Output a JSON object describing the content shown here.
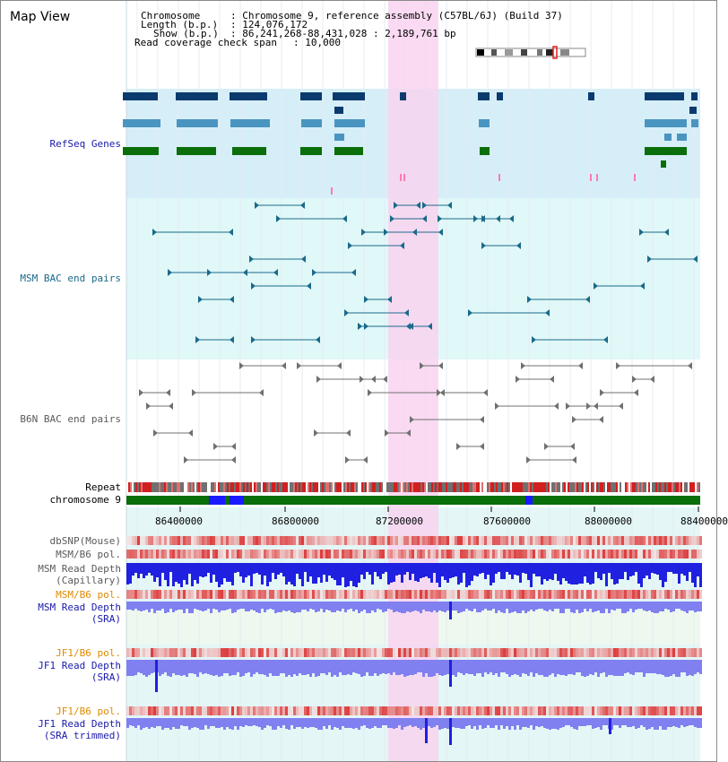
{
  "title": "Map View",
  "header": {
    "chromosome_label": "Chromosome",
    "chromosome_value": ": Chromosome 9, reference assembly (C57BL/6J) (Build 37)",
    "length_label": "Length (b.p.)",
    "length_value": ": 124,076,172",
    "show_label": "Show (b.p.)",
    "show_value": ": 86,241,268-88,431,028 : 2,189,761 bp",
    "span_label": "Read coverage check span",
    "span_value": ": 10,000"
  },
  "tracks": {
    "refseq": "RefSeq Genes",
    "msm_bac": "MSM BAC end pairs",
    "b6n_bac": "B6N BAC end pairs",
    "repeat": "Repeat",
    "chromosome": "chromosome 9",
    "dbsnp": "dbSNP(Mouse)",
    "msm_b6_pol": "MSM/B6 pol.",
    "msm_read_depth_cap": "MSM Read Depth",
    "msm_read_depth_cap2": "(Capillary)",
    "msm_b6_pol_sra": "MSM/B6 pol.",
    "msm_read_depth_sra": "MSM Read Depth",
    "msm_read_depth_sra2": "(SRA)",
    "jf1_b6_pol": "JF1/B6 pol.",
    "jf1_read_depth_sra": "JF1 Read Depth",
    "jf1_read_depth_sra2": "(SRA)",
    "jf1_b6_pol_trim": "JF1/B6 pol.",
    "jf1_read_depth_trim": "JF1 Read Depth",
    "jf1_read_depth_trim2": "(SRA trimmed)"
  },
  "axis": {
    "ticks": [
      "86400000",
      "86800000",
      "87200000",
      "87600000",
      "88000000",
      "88400000"
    ]
  },
  "colors": {
    "refseq_band": "#d6eef8",
    "msm_band": "#e0f8f8",
    "highlight": "#f8d4f0",
    "gene_dark": "#0a3a6e",
    "gene_mid": "#4a95c0",
    "gene_green": "#0a6e0a",
    "bac_msm": "#1a6a8a",
    "bac_b6n": "#707070",
    "depth_blue": "#2020e0",
    "depth_lite": "#8080f0",
    "label_blue": "#1a1aaa",
    "label_orange": "#e08a00",
    "label_teal": "#1a6a8a",
    "label_gray": "#5a5a5a"
  },
  "ideogram_icon": "chromosome-ideogram"
}
